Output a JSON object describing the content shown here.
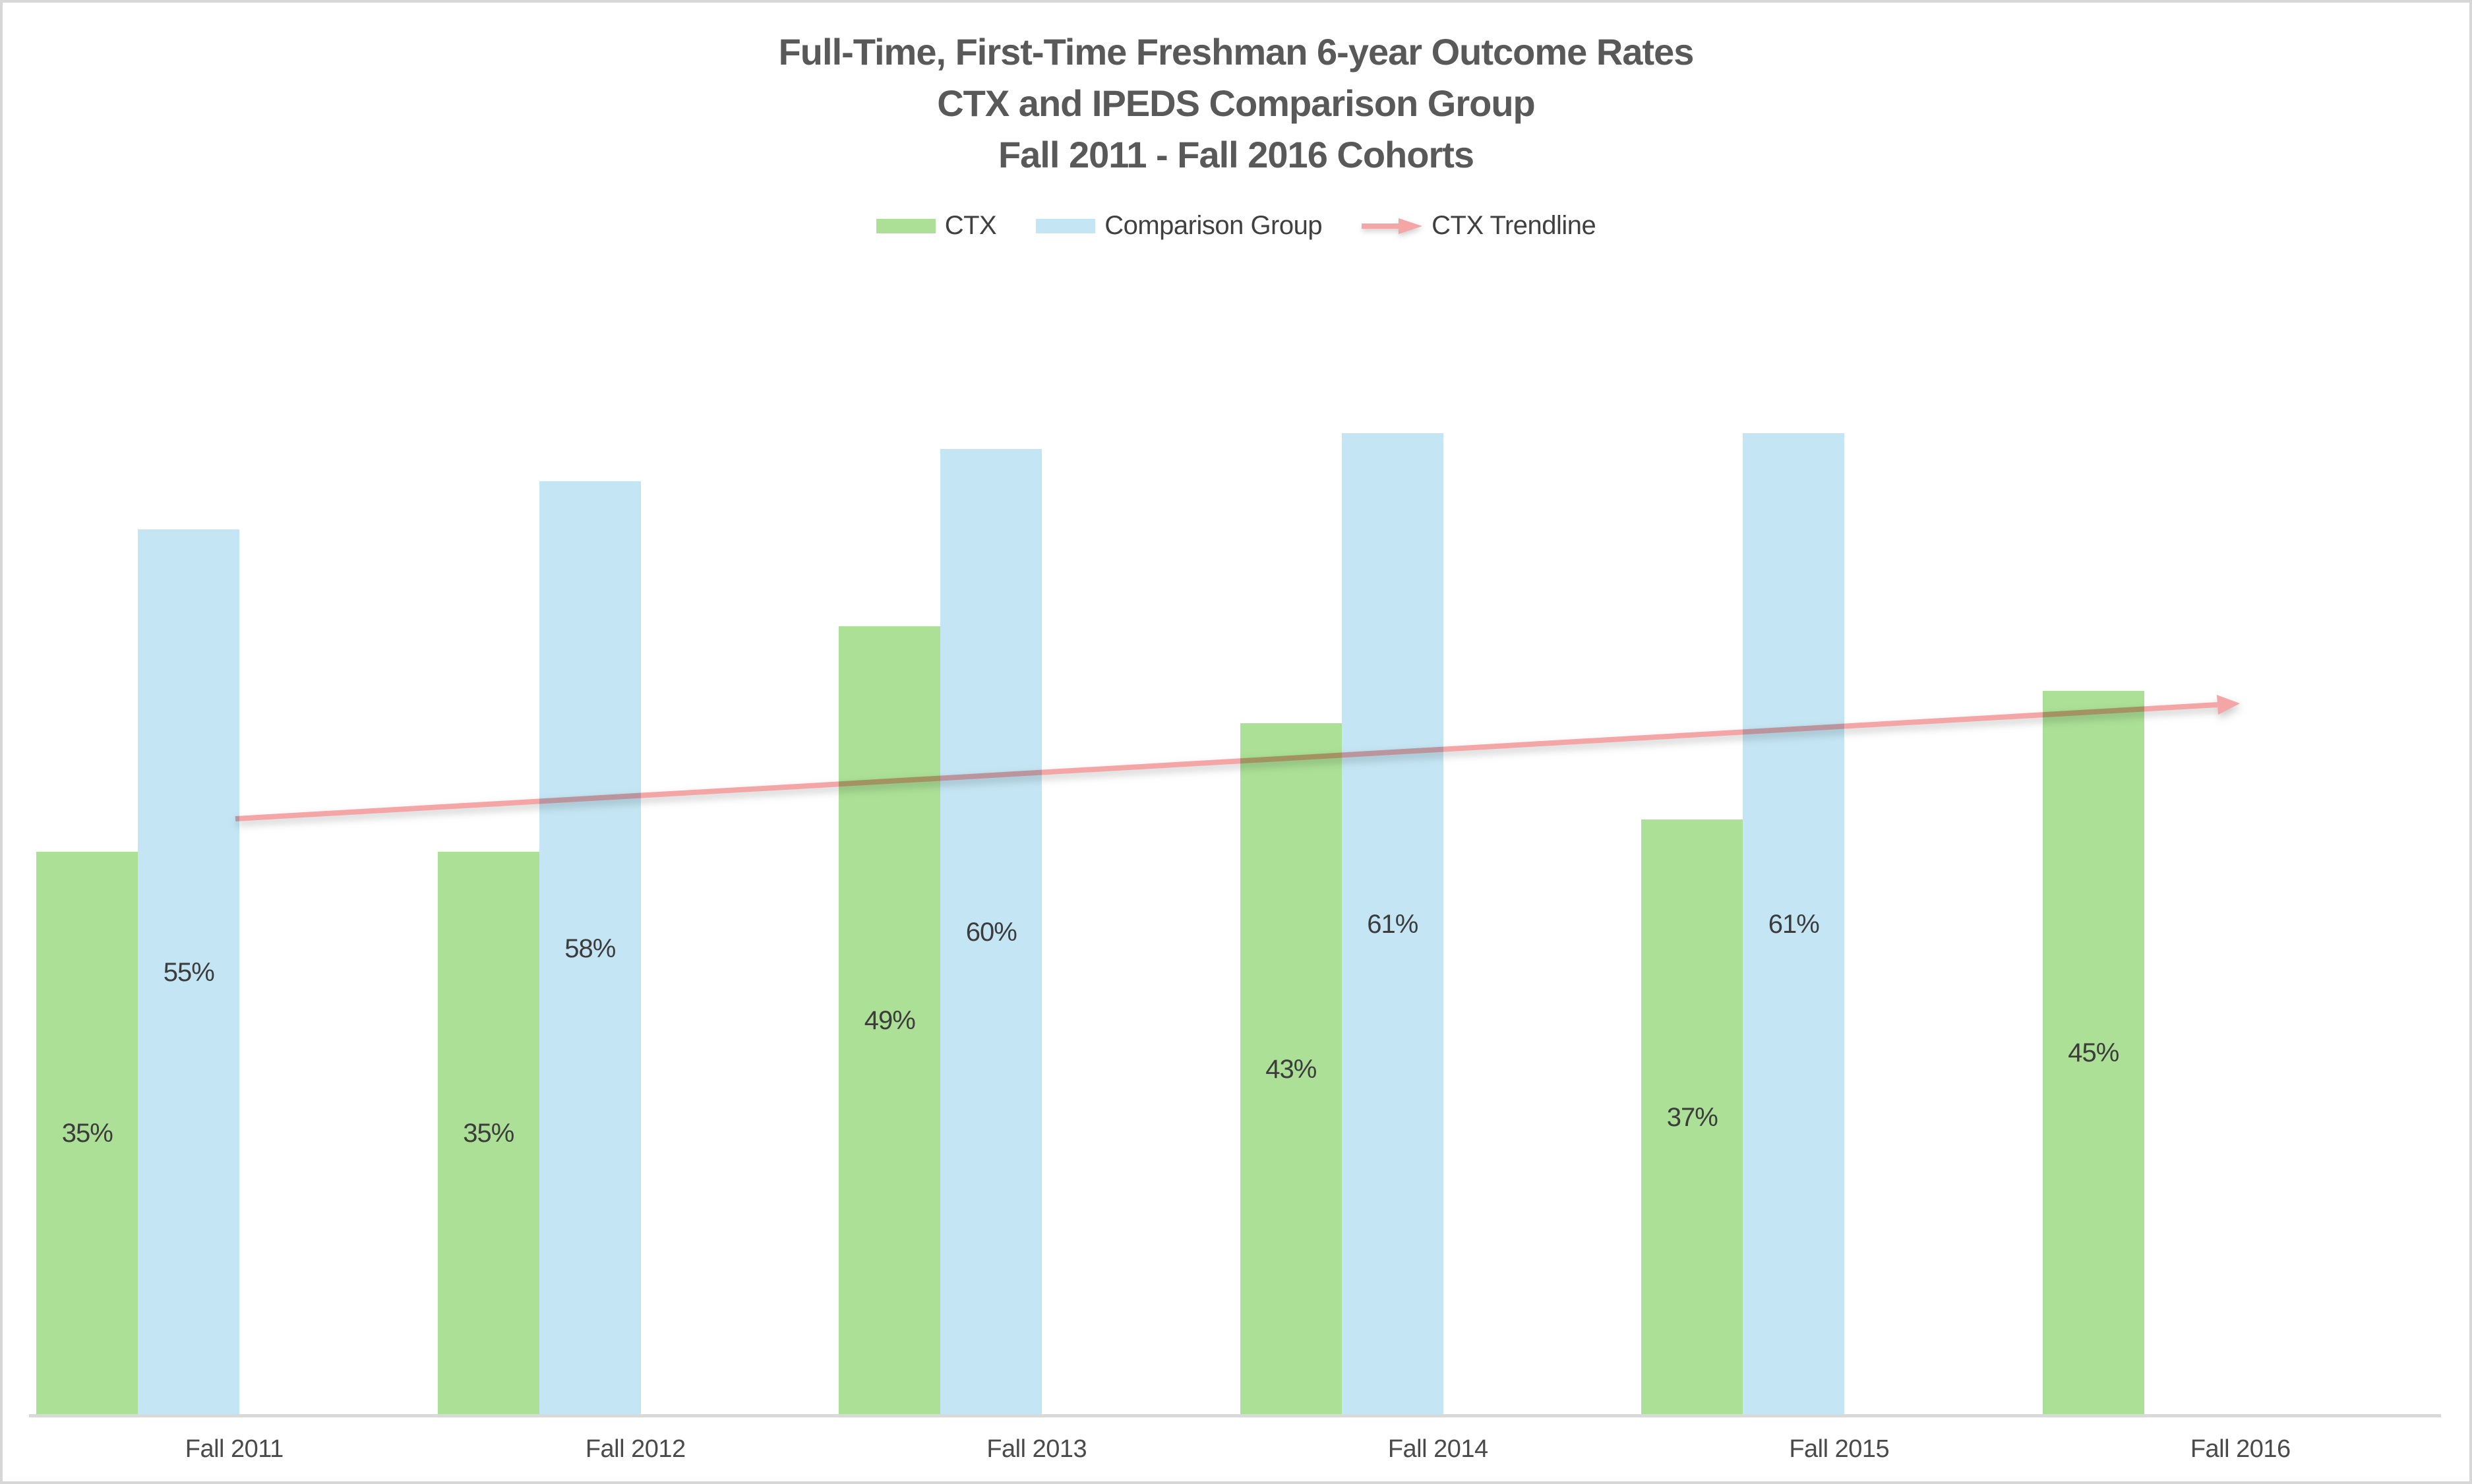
{
  "title": {
    "lines": [
      "Full-Time, First-Time Freshman 6-year Outcome Rates",
      "CTX and IPEDS Comparison Group",
      "Fall 2011 - Fall 2016 Cohorts"
    ],
    "color": "#595959"
  },
  "legend": {
    "items": [
      {
        "label": "CTX",
        "swatch": "rect",
        "color": "#ABE096"
      },
      {
        "label": "Comparison Group",
        "swatch": "rect",
        "color": "#C4E5F3"
      },
      {
        "label": "CTX Trendline",
        "swatch": "arrow",
        "color": "#F4A6A6"
      }
    ],
    "text_color": "#404040",
    "position": "top"
  },
  "chart_data": {
    "type": "bar",
    "categories": [
      "Fall 2011",
      "Fall 2012",
      "Fall 2013",
      "Fall 2014",
      "Fall 2015",
      "Fall 2016"
    ],
    "series": [
      {
        "name": "CTX",
        "color": "#ABE096",
        "values": [
          35,
          35,
          49,
          43,
          37,
          45
        ]
      },
      {
        "name": "Comparison Group",
        "color": "#C4E5F3",
        "values": [
          55,
          58,
          60,
          61,
          61,
          null
        ]
      }
    ],
    "data_labels": {
      "format": "percent",
      "position": "center",
      "color": "#3C3C3C"
    },
    "trendline": {
      "name": "CTX Trendline",
      "series": "CTX",
      "color": "#F4A6A6",
      "start_value_pct": 37.1,
      "end_value_pct": 44.2,
      "arrow_end": true
    },
    "x_axis": {
      "labels": [
        "Fall 2011",
        "Fall 2012",
        "Fall 2013",
        "Fall 2014",
        "Fall 2015",
        "Fall 2016"
      ],
      "line_color": "#D9D9D9",
      "label_color": "#4A4A4A"
    },
    "y_axis": {
      "visible": false,
      "unit": "percent",
      "min": 0
    },
    "gridlines": false,
    "legend_position": "top",
    "background": "#FFFFFF"
  }
}
